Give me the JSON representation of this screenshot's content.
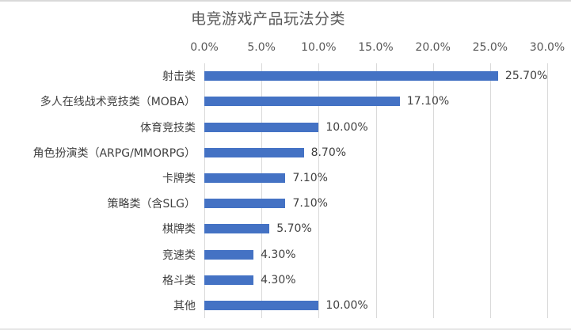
{
  "chart_data": {
    "type": "bar",
    "orientation": "horizontal",
    "title": "电竞游戏产品玩法分类",
    "xlabel": "",
    "ylabel": "",
    "xlim": [
      0,
      30
    ],
    "x_ticks": [
      "0.0%",
      "5.0%",
      "10.0%",
      "15.0%",
      "20.0%",
      "25.0%",
      "30.0%"
    ],
    "x_axis_position": "top",
    "grid": true,
    "legend": null,
    "categories": [
      "射击类",
      "多人在线战术竞技类（MOBA）",
      "体育竞技类",
      "角色扮演类（ARPG/MMORPG）",
      "卡牌类",
      "策略类（含SLG）",
      "棋牌类",
      "竞速类",
      "格斗类",
      "其他"
    ],
    "values": [
      25.7,
      17.1,
      10.0,
      8.7,
      7.1,
      7.1,
      5.7,
      4.3,
      4.3,
      10.0
    ],
    "value_labels": [
      "25.70%",
      "17.10%",
      "10.00%",
      "8.70%",
      "7.10%",
      "7.10%",
      "5.70%",
      "4.30%",
      "4.30%",
      "10.00%"
    ],
    "bar_color": "#4472c4"
  }
}
